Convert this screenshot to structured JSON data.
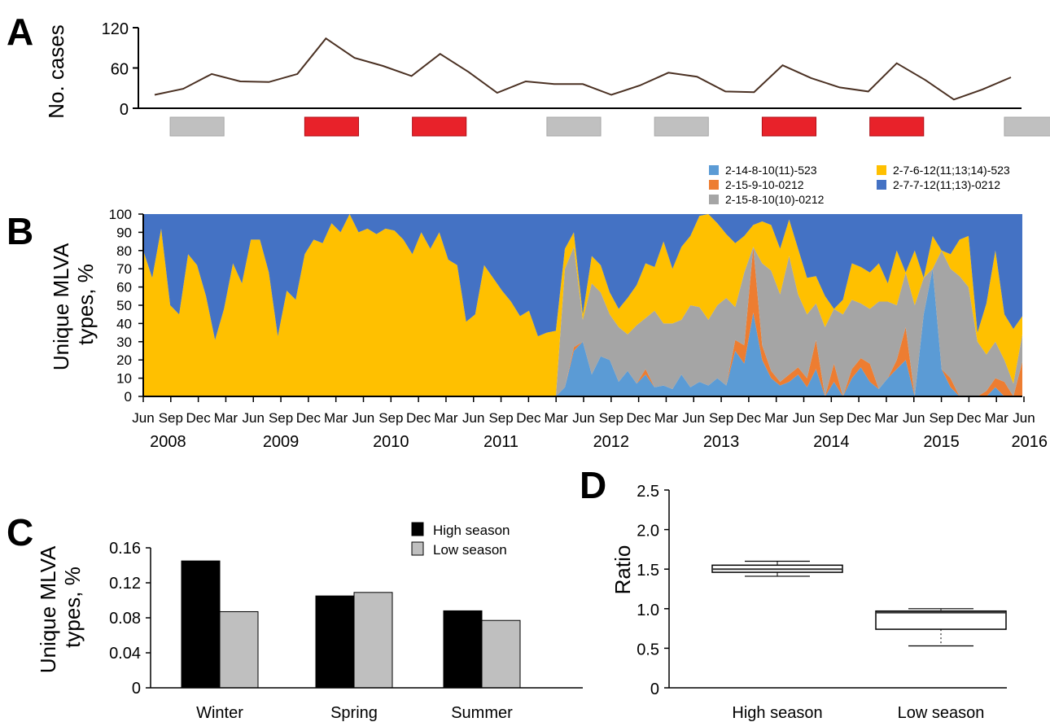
{
  "panels": {
    "a": "A",
    "b": "B",
    "c": "C",
    "d": "D"
  },
  "chart_data": [
    {
      "panel": "A",
      "type": "line",
      "ylabel": "No. cases",
      "ylim": [
        0,
        120
      ],
      "yticks": [
        0,
        60,
        120
      ],
      "series": [
        {
          "values": [
            20,
            29,
            51,
            40,
            39,
            51,
            104,
            75,
            63,
            48,
            81,
            54,
            23,
            40,
            36,
            36,
            20,
            34,
            53,
            47,
            25,
            24,
            64,
            45,
            31,
            25,
            67,
            42,
            13,
            28,
            46
          ],
          "color": "#4a3022"
        }
      ],
      "season_bars": [
        {
          "season": "low",
          "start": 1,
          "end": 3,
          "color": "#c0c0c0"
        },
        {
          "season": "high",
          "start": 6,
          "end": 8,
          "color": "#e8222a"
        },
        {
          "season": "high",
          "start": 10,
          "end": 12,
          "color": "#e8222a"
        },
        {
          "season": "low",
          "start": 15,
          "end": 17,
          "color": "#c0c0c0"
        },
        {
          "season": "low",
          "start": 19,
          "end": 21,
          "color": "#c0c0c0"
        },
        {
          "season": "high",
          "start": 23,
          "end": 25,
          "color": "#e8222a"
        },
        {
          "season": "high",
          "start": 27,
          "end": 29,
          "color": "#e8222a"
        },
        {
          "season": "low",
          "start": 32,
          "end": 34,
          "color": "#c0c0c0"
        }
      ]
    },
    {
      "panel": "B",
      "type": "area",
      "ylabel": "Unique MLVA types, %",
      "ylim": [
        0,
        100
      ],
      "yticks": [
        0,
        10,
        20,
        30,
        40,
        50,
        60,
        70,
        80,
        90,
        100
      ],
      "x_tick_labels": [
        "Jun",
        "Sep",
        "Dec",
        "Mar",
        "Jun",
        "Sep",
        "Dec",
        "Mar",
        "Jun",
        "Sep",
        "Dec",
        "Mar",
        "Jun",
        "Sep",
        "Dec",
        "Mar",
        "Jun",
        "Sep",
        "Dec",
        "Mar",
        "Jun",
        "Sep",
        "Dec",
        "Mar",
        "Jun",
        "Sep",
        "Dec",
        "Mar",
        "Jun",
        "Sep",
        "Dec",
        "Mar",
        "Jun"
      ],
      "year_labels": [
        {
          "label": "2008",
          "tick": 0.9
        },
        {
          "label": "2009",
          "tick": 5
        },
        {
          "label": "2010",
          "tick": 9
        },
        {
          "label": "2011",
          "tick": 13
        },
        {
          "label": "2012",
          "tick": 17
        },
        {
          "label": "2013",
          "tick": 21
        },
        {
          "label": "2014",
          "tick": 25
        },
        {
          "label": "2015",
          "tick": 29
        },
        {
          "label": "2016",
          "tick": 32.2
        }
      ],
      "legend": [
        {
          "label": "2-14-8-10(11)-523",
          "color": "#5b9bd5"
        },
        {
          "label": "2-15-9-10-0212",
          "color": "#ed7d31"
        },
        {
          "label": "2-15-8-10(10)-0212",
          "color": "#a5a5a5"
        },
        {
          "label": "2-7-6-12(11;13;14)-523",
          "color": "#ffc000"
        },
        {
          "label": "2-7-7-12(11;13)-0212",
          "color": "#4472c4"
        }
      ],
      "months_from_start": [
        0,
        1,
        2,
        3,
        4,
        5,
        6,
        7,
        8,
        9,
        10,
        11,
        12,
        13,
        14,
        15,
        16,
        17,
        18,
        19,
        20,
        21,
        22,
        23,
        24,
        25,
        26,
        27,
        28,
        29,
        30,
        31,
        32,
        33,
        34,
        35,
        36,
        37,
        38,
        39,
        40,
        41,
        42,
        43,
        44,
        45,
        46,
        47,
        48,
        49,
        50,
        51,
        52,
        53,
        54,
        55,
        56,
        57,
        58,
        59,
        60,
        61,
        62,
        63,
        64,
        65,
        66,
        67,
        68,
        69,
        70,
        71,
        72,
        73,
        74,
        75,
        76,
        77,
        78,
        79,
        80,
        81,
        82,
        83,
        84,
        85,
        86,
        87,
        88,
        89,
        90,
        91,
        92,
        93,
        94,
        95,
        96,
        97,
        98
      ],
      "series_values": {
        "s1": [
          0,
          0,
          0,
          0,
          0,
          0,
          0,
          0,
          0,
          0,
          0,
          0,
          0,
          0,
          0,
          0,
          0,
          0,
          0,
          0,
          0,
          0,
          0,
          0,
          0,
          0,
          0,
          0,
          0,
          0,
          0,
          0,
          0,
          0,
          0,
          0,
          0,
          0,
          0,
          0,
          0,
          0,
          0,
          0,
          0,
          0,
          0,
          5,
          25,
          30,
          12,
          22,
          20,
          8,
          14,
          7,
          12,
          5,
          6,
          4,
          12,
          5,
          8,
          6,
          10,
          6,
          25,
          18,
          46,
          20,
          10,
          6,
          8,
          12,
          5,
          15,
          0,
          8,
          0,
          10,
          16,
          8,
          4,
          10,
          15,
          20,
          0,
          45,
          70,
          15,
          5,
          0,
          0,
          0,
          0,
          5,
          0,
          0,
          0
        ],
        "s2": [
          0,
          0,
          0,
          0,
          0,
          0,
          0,
          0,
          0,
          0,
          0,
          0,
          0,
          0,
          0,
          0,
          0,
          0,
          0,
          0,
          0,
          0,
          0,
          0,
          0,
          0,
          0,
          0,
          0,
          0,
          0,
          0,
          0,
          0,
          0,
          0,
          0,
          0,
          0,
          0,
          0,
          0,
          0,
          0,
          0,
          0,
          0,
          0,
          2,
          0,
          0,
          0,
          0,
          0,
          0,
          0,
          3,
          0,
          0,
          0,
          0,
          0,
          0,
          0,
          0,
          0,
          6,
          10,
          36,
          8,
          4,
          2,
          4,
          4,
          5,
          16,
          0,
          10,
          0,
          5,
          5,
          10,
          0,
          0,
          5,
          18,
          0,
          0,
          0,
          0,
          5,
          0,
          0,
          0,
          3,
          5,
          8,
          0,
          19
        ],
        "s3": [
          0,
          0,
          0,
          0,
          0,
          0,
          0,
          0,
          0,
          0,
          0,
          0,
          0,
          0,
          0,
          0,
          0,
          0,
          0,
          0,
          0,
          0,
          0,
          0,
          0,
          0,
          0,
          0,
          0,
          0,
          0,
          0,
          0,
          0,
          0,
          0,
          0,
          0,
          0,
          0,
          0,
          0,
          0,
          0,
          0,
          0,
          0,
          65,
          55,
          12,
          50,
          35,
          25,
          30,
          20,
          32,
          28,
          42,
          34,
          36,
          30,
          45,
          41,
          36,
          40,
          48,
          18,
          40,
          -3,
          45,
          55,
          48,
          65,
          40,
          35,
          20,
          38,
          30,
          45,
          38,
          30,
          30,
          48,
          42,
          30,
          30,
          50,
          20,
          0,
          65,
          60,
          66,
          60,
          30,
          20,
          20,
          12,
          7,
          15
        ],
        "s4": [
          80,
          65,
          92,
          50,
          45,
          78,
          72,
          55,
          31,
          48,
          73,
          62,
          86,
          86,
          68,
          33,
          58,
          53,
          78,
          86,
          84,
          95,
          90,
          100,
          90,
          92,
          89,
          92,
          91,
          86,
          78,
          90,
          81,
          90,
          75,
          72,
          41,
          45,
          72,
          65,
          58,
          52,
          44,
          47,
          33,
          35,
          36,
          11,
          8,
          3,
          15,
          15,
          12,
          10,
          20,
          22,
          30,
          24,
          45,
          30,
          40,
          38,
          50,
          60,
          45,
          35,
          35,
          20,
          12,
          23,
          25,
          25,
          20,
          25,
          20,
          15,
          17,
          0,
          8,
          20,
          20,
          20,
          21,
          10,
          30,
          0,
          30,
          0,
          18,
          0,
          8,
          20,
          28,
          5,
          28,
          50,
          25,
          30,
          10
        ],
        "s5": [
          20,
          35,
          8,
          50,
          55,
          22,
          28,
          45,
          69,
          52,
          27,
          38,
          14,
          14,
          32,
          67,
          42,
          47,
          22,
          14,
          16,
          5,
          10,
          0,
          10,
          8,
          11,
          8,
          9,
          14,
          22,
          10,
          19,
          10,
          25,
          28,
          59,
          55,
          28,
          35,
          42,
          48,
          56,
          53,
          67,
          65,
          64,
          19,
          10,
          55,
          23,
          28,
          43,
          52,
          46,
          39,
          27,
          29,
          15,
          30,
          18,
          12,
          1,
          0,
          5,
          11,
          15,
          12,
          8,
          4,
          6,
          19,
          3,
          19,
          35,
          34,
          45,
          52,
          47,
          27,
          29,
          32,
          27,
          38,
          20,
          32,
          20,
          35,
          12,
          20,
          22,
          14,
          12,
          65,
          49,
          20,
          55,
          63,
          56
        ]
      }
    },
    {
      "panel": "C",
      "type": "bar",
      "ylabel": "Unique MLVA types, %",
      "ylim": [
        0,
        0.16
      ],
      "yticks": [
        "0",
        "0.04",
        "0.08",
        "0.12",
        "0.16"
      ],
      "categories": [
        "Winter",
        "Spring",
        "Summer"
      ],
      "series": [
        {
          "name": "High season",
          "values": [
            0.145,
            0.105,
            0.088
          ],
          "color": "#000000"
        },
        {
          "name": "Low season",
          "values": [
            0.087,
            0.109,
            0.077
          ],
          "color": "#bfbfbf"
        }
      ],
      "legend_position": "top-right"
    },
    {
      "panel": "D",
      "type": "box",
      "ylabel": "Ratio",
      "ylim": [
        0,
        2.5
      ],
      "yticks": [
        "0",
        "0.5",
        "1.0",
        "1.5",
        "2.0",
        "2.5"
      ],
      "categories": [
        "High season",
        "Low season"
      ],
      "boxes": [
        {
          "min": 1.41,
          "q1": 1.46,
          "median": 1.5,
          "q3": 1.55,
          "max": 1.6
        },
        {
          "min": 0.53,
          "q1": 0.74,
          "median": 0.95,
          "q3": 0.97,
          "max": 1.0
        }
      ]
    }
  ]
}
